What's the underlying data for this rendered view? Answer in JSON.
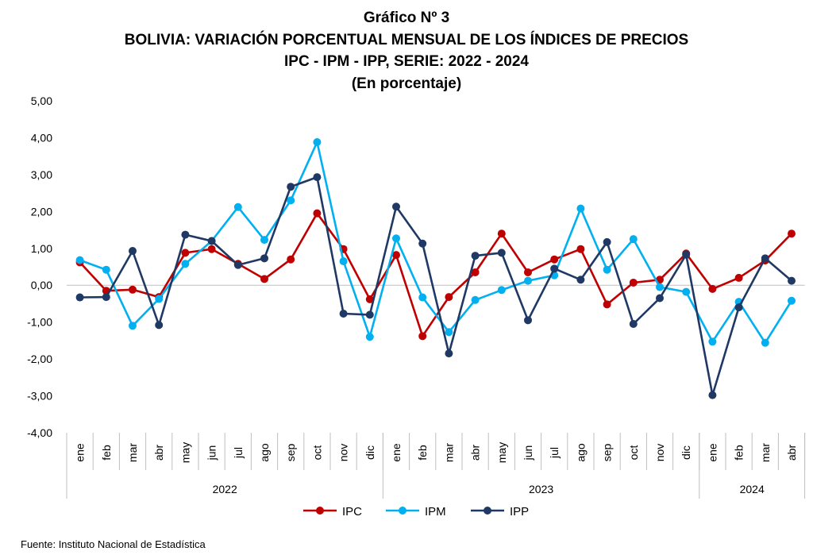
{
  "title": {
    "line1": "Gráfico Nº 3",
    "line2": "BOLIVIA: VARIACIÓN PORCENTUAL MENSUAL DE LOS ÍNDICES DE PRECIOS",
    "line3": "IPC - IPM - IPP, SERIE: 2022 - 2024",
    "line4": "(En porcentaje)"
  },
  "source": "Fuente: Instituto Nacional de Estadística",
  "colors": {
    "IPC": "#c00000",
    "IPM": "#00b0f0",
    "IPP": "#1f3864",
    "axis": "#bfbfbf"
  },
  "chart_data": {
    "type": "line",
    "ylim": [
      -4,
      5
    ],
    "yticks": [
      "5,00",
      "4,00",
      "3,00",
      "2,00",
      "1,00",
      "0,00",
      "-1,00",
      "-2,00",
      "-3,00",
      "-4,00"
    ],
    "ytick_values": [
      5,
      4,
      3,
      2,
      1,
      0,
      -1,
      -2,
      -3,
      -4
    ],
    "categories": [
      "ene",
      "feb",
      "mar",
      "abr",
      "may",
      "jun",
      "jul",
      "ago",
      "sep",
      "oct",
      "nov",
      "dic",
      "ene",
      "feb",
      "mar",
      "abr",
      "may",
      "jun",
      "jul",
      "ago",
      "sep",
      "oct",
      "nov",
      "dic",
      "ene",
      "feb",
      "mar",
      "abr"
    ],
    "year_groups": [
      {
        "label": "2022",
        "count": 12
      },
      {
        "label": "2023",
        "count": 12
      },
      {
        "label": "2024",
        "count": 4
      }
    ],
    "legend_position": "bottom",
    "series": [
      {
        "name": "IPC",
        "values": [
          0.62,
          -0.15,
          -0.12,
          -0.32,
          0.88,
          0.98,
          0.58,
          0.17,
          0.7,
          1.95,
          0.98,
          -0.38,
          0.82,
          -1.38,
          -0.32,
          0.35,
          1.4,
          0.35,
          0.7,
          0.98,
          -0.52,
          0.07,
          0.15,
          0.86,
          -0.1,
          0.2,
          0.67,
          1.4
        ]
      },
      {
        "name": "IPM",
        "values": [
          0.68,
          0.42,
          -1.1,
          -0.37,
          0.58,
          1.2,
          2.12,
          1.23,
          2.3,
          3.88,
          0.65,
          -1.4,
          1.27,
          -0.33,
          -1.27,
          -0.4,
          -0.13,
          0.12,
          0.27,
          2.08,
          0.42,
          1.25,
          -0.05,
          -0.18,
          -1.53,
          -0.45,
          -1.56,
          -0.42
        ]
      },
      {
        "name": "IPP",
        "values": [
          -0.33,
          -0.32,
          0.93,
          -1.08,
          1.37,
          1.2,
          0.55,
          0.73,
          2.67,
          2.93,
          -0.77,
          -0.8,
          2.13,
          1.13,
          -1.85,
          0.8,
          0.88,
          -0.95,
          0.45,
          0.15,
          1.17,
          -1.05,
          -0.35,
          0.83,
          -2.98,
          -0.6,
          0.73,
          0.12
        ]
      }
    ]
  }
}
